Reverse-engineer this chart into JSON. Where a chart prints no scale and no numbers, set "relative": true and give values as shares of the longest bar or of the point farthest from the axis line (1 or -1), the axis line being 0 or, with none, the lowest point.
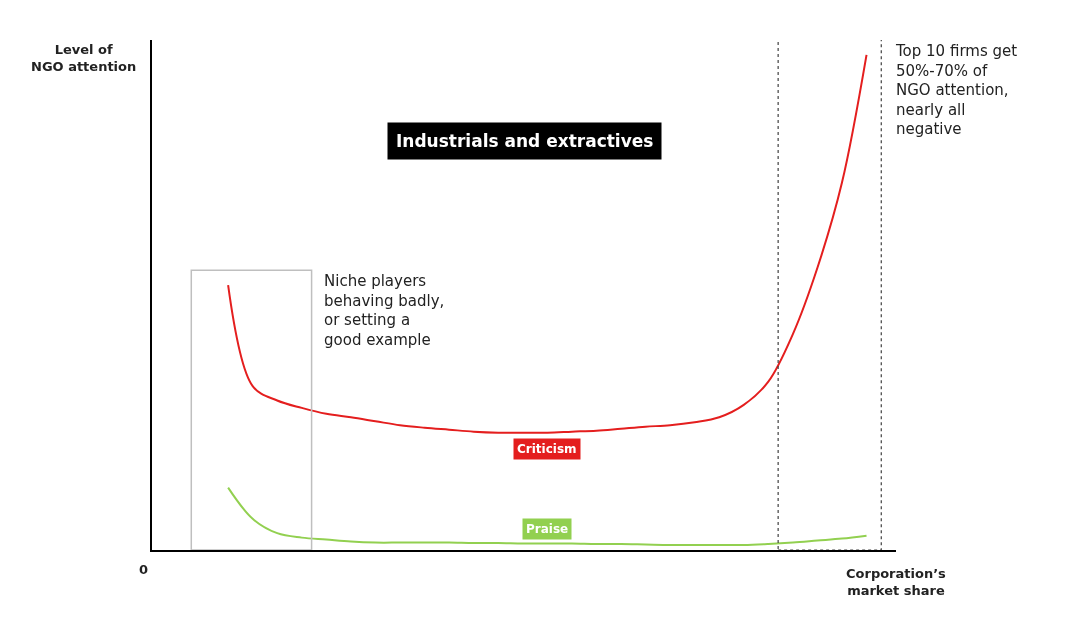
{
  "chart_data": {
    "type": "line",
    "relative": true,
    "title": "Industrials and extractives",
    "ylabel": "Level of\nNGO attention",
    "xlabel": "Corporation’s\nmarket share",
    "marker": "none",
    "line_style": "solid",
    "categories": [
      null,
      null,
      null,
      null,
      null,
      null,
      null,
      null,
      null,
      null,
      null,
      null,
      null,
      null,
      null,
      null,
      null,
      null,
      null,
      null,
      null,
      null,
      null,
      null,
      null,
      null,
      null,
      null,
      null,
      null,
      null
    ],
    "series": [
      {
        "name": "Criticism",
        "color": "#e41e1e",
        "values": [
          null,
          null,
          null,
          0.535,
          0.331,
          0.302,
          0.287,
          0.275,
          0.268,
          0.26,
          0.252,
          0.247,
          0.243,
          0.239,
          0.237,
          0.237,
          0.237,
          0.239,
          0.241,
          0.245,
          0.249,
          0.252,
          0.258,
          0.268,
          0.293,
          0.34,
          0.436,
          0.57,
          0.742,
          1.0,
          null
        ]
      },
      {
        "name": "Praise",
        "color": "#92d050",
        "values": [
          null,
          null,
          null,
          0.126,
          0.063,
          0.034,
          0.025,
          0.021,
          0.017,
          0.015,
          0.015,
          0.015,
          0.015,
          0.014,
          0.014,
          0.013,
          0.013,
          0.013,
          0.012,
          0.012,
          0.011,
          0.01,
          0.01,
          0.01,
          0.01,
          0.012,
          0.015,
          0.019,
          0.023,
          0.029,
          null
        ]
      }
    ],
    "annotations": [
      "0",
      "Niche players\nbehaving badly,\nor setting a\ngood example",
      "Top 10 firms get\n50%-70% of\nNGO attention,\nnearly all\nnegative"
    ]
  }
}
